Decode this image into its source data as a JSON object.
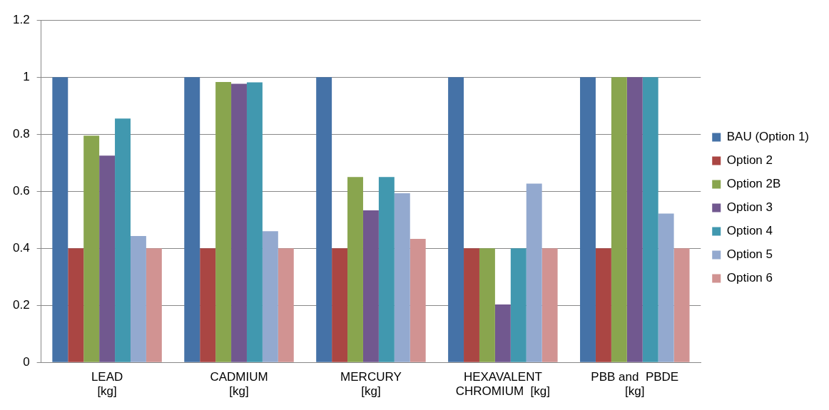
{
  "chart_data": {
    "type": "bar",
    "categories": [
      "LEAD\n[kg]",
      "CADMIUM\n[kg]",
      "MERCURY\n[kg]",
      "HEXAVALENT\nCHROMIUM  [kg]",
      "PBB and  PBDE\n[kg]"
    ],
    "series": [
      {
        "name": "BAU (Option 1)",
        "color": "#4572a7",
        "values": [
          1,
          1,
          1,
          1,
          1
        ]
      },
      {
        "name": "Option 2",
        "color": "#aa4643",
        "values": [
          0.4,
          0.4,
          0.4,
          0.4,
          0.4
        ]
      },
      {
        "name": "Option 2B",
        "color": "#89a54e",
        "values": [
          0.795,
          0.983,
          0.65,
          0.4,
          1
        ]
      },
      {
        "name": "Option 3",
        "color": "#71588f",
        "values": [
          0.725,
          0.977,
          0.533,
          0.203,
          1
        ]
      },
      {
        "name": "Option 4",
        "color": "#4198af",
        "values": [
          0.855,
          0.982,
          0.65,
          0.4,
          1
        ]
      },
      {
        "name": "Option 5",
        "color": "#93a9cf",
        "values": [
          0.443,
          0.46,
          0.593,
          0.627,
          0.522
        ]
      },
      {
        "name": "Option 6",
        "color": "#d19392",
        "values": [
          0.4,
          0.4,
          0.433,
          0.4,
          0.4
        ]
      }
    ],
    "ylim": [
      0,
      1.2
    ],
    "yticks": [
      0,
      0.2,
      0.4,
      0.6,
      0.8,
      1,
      1.2
    ],
    "grid": "y",
    "legend": "right"
  }
}
